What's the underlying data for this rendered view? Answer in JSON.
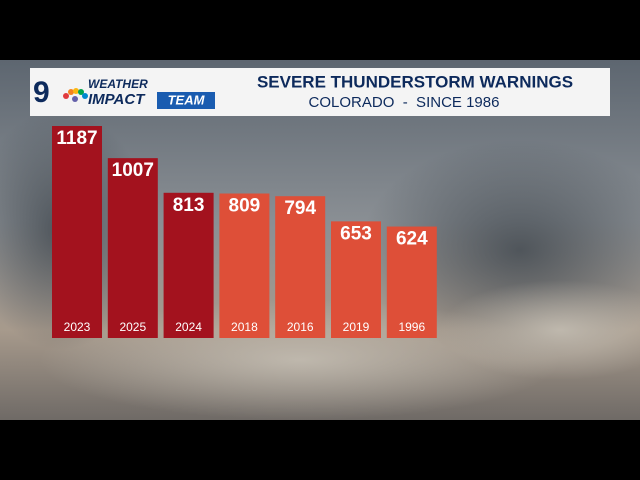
{
  "branding": {
    "number": "9",
    "line1": "WEATHER",
    "line2": "IMPACT",
    "line3": "TEAM"
  },
  "chart_data": {
    "type": "bar",
    "title": "SEVERE THUNDERSTORM WARNINGS",
    "subtitle": "COLORADO  -  SINCE 1986",
    "categories": [
      "2023",
      "2025",
      "2024",
      "2018",
      "2016",
      "2019",
      "1996"
    ],
    "values": [
      1187,
      1007,
      813,
      809,
      794,
      653,
      624
    ],
    "colors": [
      "#a3121e",
      "#a3121e",
      "#a3121e",
      "#de4f38",
      "#de4f38",
      "#de4f38",
      "#de4f38"
    ]
  }
}
